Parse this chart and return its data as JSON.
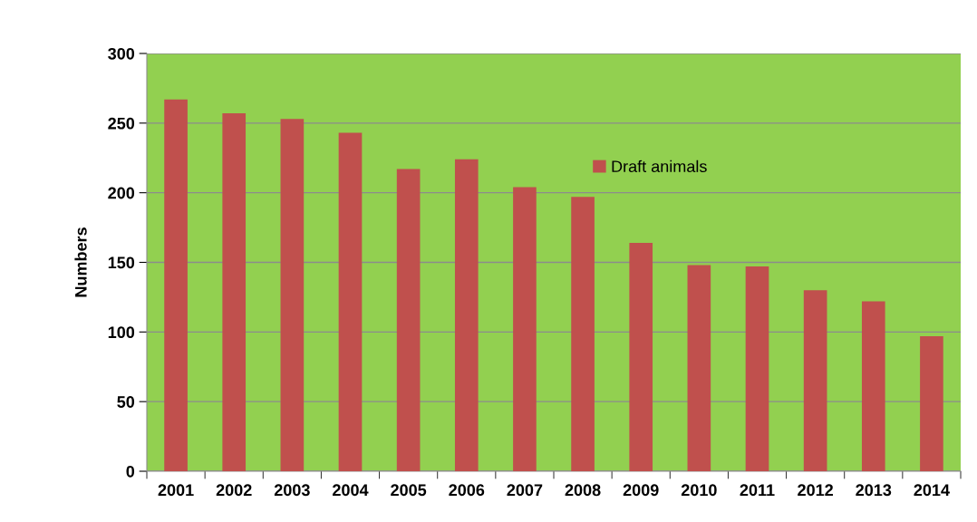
{
  "chart_data": {
    "type": "bar",
    "ylabel": "Numbers",
    "categories": [
      "2001",
      "2002",
      "2003",
      "2004",
      "2005",
      "2006",
      "2007",
      "2008",
      "2009",
      "2010",
      "2011",
      "2012",
      "2013",
      "2014"
    ],
    "series": [
      {
        "name": "Draft animals",
        "color": "#c0504d",
        "values": [
          267,
          257,
          253,
          243,
          217,
          224,
          204,
          197,
          164,
          148,
          147,
          130,
          122,
          97
        ]
      }
    ],
    "ylim": [
      0,
      300
    ],
    "yticks": [
      0,
      50,
      100,
      150,
      200,
      250,
      300
    ],
    "grid": "y",
    "legend": "top"
  }
}
